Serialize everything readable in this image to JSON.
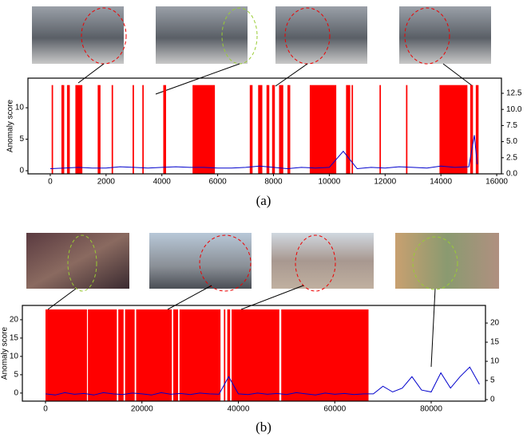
{
  "chart_data": [
    {
      "type": "line",
      "caption": "(a)",
      "y_label": "Anomaly score",
      "xlim": [
        -800,
        16170
      ],
      "xticks": [
        0,
        2000,
        4000,
        6000,
        8000,
        10000,
        12000,
        14000,
        16000
      ],
      "ylim": [
        -0.5,
        14.7
      ],
      "yticks": [
        0,
        5,
        10
      ],
      "y2lim": [
        0,
        14.85
      ],
      "y2ticks": [
        {
          "value": 0,
          "label": "0.0"
        },
        {
          "value": 2.5,
          "label": "2.5"
        },
        {
          "value": 5,
          "label": "5.0"
        },
        {
          "value": 7.5,
          "label": "7.5"
        },
        {
          "value": 10,
          "label": "10.0"
        },
        {
          "value": 12.5,
          "label": "12.5"
        }
      ],
      "regions": {
        "color": "#ff0000",
        "top": 13.6,
        "spans": [
          [
            50,
            100
          ],
          [
            400,
            500
          ],
          [
            600,
            700
          ],
          [
            900,
            1150
          ],
          [
            1700,
            1800
          ],
          [
            2200,
            2250
          ],
          [
            2950,
            3000
          ],
          [
            3300,
            3350
          ],
          [
            4050,
            4150
          ],
          [
            5100,
            5900
          ],
          [
            7150,
            7250
          ],
          [
            7450,
            7600
          ],
          [
            7750,
            7850
          ],
          [
            7950,
            8050
          ],
          [
            8200,
            8350
          ],
          [
            8500,
            8600
          ],
          [
            9300,
            10250
          ],
          [
            10600,
            10750
          ],
          [
            10800,
            10850
          ],
          [
            11800,
            11850
          ],
          [
            12750,
            12800
          ],
          [
            13950,
            14950
          ],
          [
            15050,
            15150
          ],
          [
            15250,
            15350
          ]
        ]
      },
      "series": [
        {
          "color": "#0000cc",
          "axis": "y2",
          "x": [
            0,
            500,
            1000,
            1500,
            2000,
            2500,
            3000,
            3500,
            4000,
            4500,
            5000,
            5500,
            6000,
            6500,
            7000,
            7500,
            8000,
            8500,
            9000,
            9500,
            10000,
            10500,
            11000,
            11500,
            12000,
            12500,
            13000,
            13500,
            14000,
            14500,
            15000,
            15200,
            15300
          ],
          "values": [
            0.8,
            0.9,
            1.0,
            0.9,
            0.9,
            1.1,
            1.0,
            0.9,
            1.0,
            1.1,
            1.0,
            1.0,
            0.9,
            0.9,
            1.0,
            1.2,
            1.0,
            0.8,
            1.0,
            0.9,
            1.0,
            3.5,
            0.8,
            1.0,
            0.9,
            1.1,
            1.0,
            0.9,
            1.2,
            1.0,
            1.1,
            6.0,
            1.5
          ]
        }
      ]
    },
    {
      "type": "line",
      "caption": "(b)",
      "y_label": "Anomaly score",
      "xlim": [
        -4800,
        91260
      ],
      "xticks": [
        0,
        20000,
        40000,
        60000,
        80000
      ],
      "ylim": [
        -2.2,
        23.9
      ],
      "yticks": [
        0,
        5,
        10,
        15,
        20
      ],
      "y2lim": [
        -0.4,
        24.6
      ],
      "y2ticks": [
        0,
        5,
        10,
        15,
        20
      ],
      "regions": {
        "color": "#ff0000",
        "top": 22.8,
        "spans": [
          [
            0,
            8600
          ],
          [
            8800,
            14800
          ],
          [
            15100,
            16200
          ],
          [
            16500,
            18500
          ],
          [
            18800,
            26200
          ],
          [
            26500,
            27500
          ],
          [
            27800,
            36300
          ],
          [
            37000,
            37300
          ],
          [
            37700,
            38300
          ],
          [
            38600,
            48500
          ],
          [
            48900,
            67000
          ]
        ]
      },
      "series": [
        {
          "color": "#0000cc",
          "axis": "y2",
          "x": [
            0,
            2000,
            4000,
            6000,
            8000,
            10000,
            12000,
            14000,
            16000,
            18000,
            20000,
            22000,
            24000,
            26000,
            28000,
            30000,
            32000,
            34000,
            36000,
            38000,
            40000,
            42000,
            44000,
            46000,
            48000,
            50000,
            52000,
            54000,
            56000,
            58000,
            60000,
            62000,
            64000,
            66000,
            68000,
            70000,
            72000,
            74000,
            76000,
            78000,
            80000,
            82000,
            84000,
            86000,
            88000,
            90000
          ],
          "values": [
            1.5,
            1.2,
            1.8,
            1.4,
            1.6,
            1.2,
            1.8,
            1.5,
            1.3,
            1.7,
            1.5,
            1.2,
            1.8,
            1.4,
            1.6,
            1.3,
            1.7,
            1.5,
            1.4,
            6.0,
            1.5,
            1.3,
            1.7,
            1.4,
            1.6,
            1.3,
            1.8,
            1.5,
            1.2,
            1.7,
            1.4,
            1.6,
            1.3,
            1.5,
            1.5,
            3.5,
            2.0,
            3.0,
            6.0,
            2.5,
            2.0,
            7.0,
            3.0,
            6.0,
            8.5,
            4.0
          ]
        }
      ]
    }
  ]
}
